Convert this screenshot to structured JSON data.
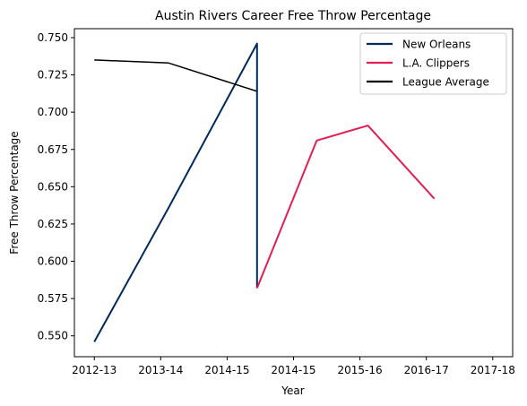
{
  "chart_data": {
    "type": "line",
    "title": "Austin Rivers Career Free Throw Percentage",
    "xlabel": "Year",
    "ylabel": "Free Throw Percentage",
    "categories": [
      "2012-13",
      "2013-14",
      "2014-15",
      "2014-15",
      "2015-16",
      "2016-17",
      "2017-18"
    ],
    "xlim": [
      -0.3,
      6.3
    ],
    "ylim": [
      0.536,
      0.756
    ],
    "yticks": [
      "0.550",
      "0.575",
      "0.600",
      "0.625",
      "0.650",
      "0.675",
      "0.700",
      "0.725",
      "0.750"
    ],
    "legend_position": "top-right",
    "series": [
      {
        "name": "New Orleans",
        "color": "#002B5C",
        "points": [
          [
            0,
            0.546
          ],
          [
            1.12,
            0.636
          ],
          [
            2.45,
            0.746
          ],
          [
            2.45,
            0.582
          ]
        ]
      },
      {
        "name": "L.A. Clippers",
        "color": "#E31E50",
        "points": [
          [
            2.45,
            0.582
          ],
          [
            3.35,
            0.681
          ],
          [
            4.12,
            0.691
          ],
          [
            5.12,
            0.642
          ]
        ]
      },
      {
        "name": "League Average",
        "color": "#000000",
        "points": [
          [
            0,
            0.735
          ],
          [
            1.12,
            0.733
          ],
          [
            2.45,
            0.714
          ]
        ]
      }
    ]
  }
}
